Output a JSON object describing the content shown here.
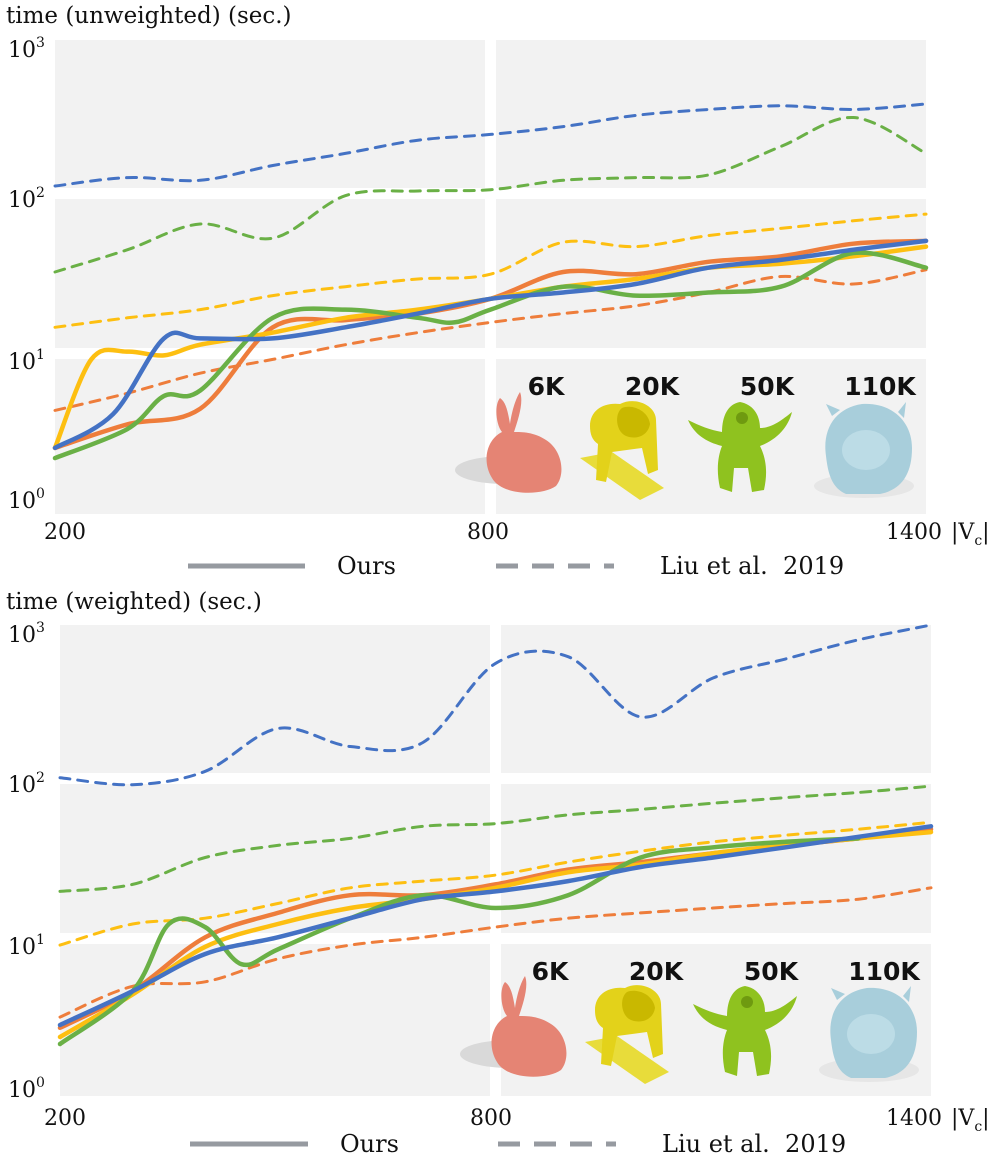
{
  "chart_data": [
    {
      "type": "line",
      "title": "time (unweighted) (sec.)",
      "xlabel": "|Vc|",
      "x_ticks": [
        "200",
        "800",
        "1400"
      ],
      "xlim": [
        200,
        1400
      ],
      "y_scale": "log",
      "ylim": [
        1,
        1000
      ],
      "y_ticks": [
        {
          "base": "10",
          "exp": "0"
        },
        {
          "base": "10",
          "exp": "1"
        },
        {
          "base": "10",
          "exp": "2"
        },
        {
          "base": "10",
          "exp": "3"
        }
      ],
      "mesh_labels": [
        "6K",
        "20K",
        "50K",
        "110K"
      ],
      "legend": {
        "solid": "Ours",
        "dashed": "Liu et al.  2019"
      },
      "series": [
        {
          "name": "6K Ours",
          "style": "solid",
          "color": "#ee7d3b",
          "points": [
            [
              200,
              2.1
            ],
            [
              300,
              3.0
            ],
            [
              400,
              3.8
            ],
            [
              500,
              13.0
            ],
            [
              600,
              14.5
            ],
            [
              700,
              16.0
            ],
            [
              800,
              20.0
            ],
            [
              900,
              30.0
            ],
            [
              1000,
              29.0
            ],
            [
              1100,
              35.0
            ],
            [
              1200,
              38.0
            ],
            [
              1300,
              46.0
            ],
            [
              1400,
              48.0
            ]
          ]
        },
        {
          "name": "20K Ours",
          "style": "solid",
          "color": "#fdbf11",
          "points": [
            [
              200,
              2.1
            ],
            [
              250,
              8.0
            ],
            [
              300,
              9.0
            ],
            [
              350,
              8.5
            ],
            [
              400,
              10.0
            ],
            [
              500,
              12.0
            ],
            [
              600,
              15.0
            ],
            [
              700,
              17.0
            ],
            [
              800,
              20.0
            ],
            [
              900,
              24.0
            ],
            [
              1000,
              27.0
            ],
            [
              1100,
              32.0
            ],
            [
              1200,
              34.0
            ],
            [
              1300,
              38.0
            ],
            [
              1400,
              44.0
            ]
          ]
        },
        {
          "name": "50K Ours",
          "style": "solid",
          "color": "#6ab046",
          "points": [
            [
              200,
              1.8
            ],
            [
              300,
              2.8
            ],
            [
              350,
              4.6
            ],
            [
              400,
              5.0
            ],
            [
              500,
              15.0
            ],
            [
              600,
              17.0
            ],
            [
              700,
              15.0
            ],
            [
              750,
              14.0
            ],
            [
              800,
              17.0
            ],
            [
              900,
              24.0
            ],
            [
              1000,
              21.0
            ],
            [
              1100,
              22.0
            ],
            [
              1200,
              24.0
            ],
            [
              1300,
              40.0
            ],
            [
              1400,
              32.0
            ]
          ]
        },
        {
          "name": "110K Ours",
          "style": "solid",
          "color": "#4472c4",
          "points": [
            [
              200,
              2.1
            ],
            [
              280,
              3.5
            ],
            [
              350,
              11.0
            ],
            [
              400,
              11.0
            ],
            [
              500,
              11.0
            ],
            [
              600,
              13.0
            ],
            [
              700,
              16.0
            ],
            [
              800,
              20.0
            ],
            [
              900,
              22.0
            ],
            [
              1000,
              25.0
            ],
            [
              1100,
              32.0
            ],
            [
              1200,
              36.0
            ],
            [
              1300,
              42.0
            ],
            [
              1400,
              48.0
            ]
          ]
        },
        {
          "name": "6K Liu et al. 2019",
          "style": "dashed",
          "color": "#ee7d3b",
          "points": [
            [
              200,
              3.7
            ],
            [
              300,
              4.8
            ],
            [
              400,
              6.5
            ],
            [
              500,
              8.0
            ],
            [
              600,
              10.0
            ],
            [
              700,
              12.0
            ],
            [
              800,
              14.0
            ],
            [
              900,
              16.0
            ],
            [
              1000,
              18.0
            ],
            [
              1100,
              22.0
            ],
            [
              1200,
              28.0
            ],
            [
              1300,
              25.0
            ],
            [
              1400,
              31.0
            ]
          ]
        },
        {
          "name": "20K Liu et al. 2019",
          "style": "dashed",
          "color": "#fdbf11",
          "points": [
            [
              200,
              13.0
            ],
            [
              300,
              15.0
            ],
            [
              400,
              17.0
            ],
            [
              500,
              21.0
            ],
            [
              600,
              24.0
            ],
            [
              700,
              27.0
            ],
            [
              800,
              29.0
            ],
            [
              900,
              47.0
            ],
            [
              1000,
              44.0
            ],
            [
              1100,
              52.0
            ],
            [
              1200,
              58.0
            ],
            [
              1300,
              65.0
            ],
            [
              1400,
              72.0
            ]
          ]
        },
        {
          "name": "50K Liu et al. 2019",
          "style": "dashed",
          "color": "#6ab046",
          "points": [
            [
              200,
              30.0
            ],
            [
              300,
              42.0
            ],
            [
              400,
              62.0
            ],
            [
              500,
              50.0
            ],
            [
              600,
              95.0
            ],
            [
              700,
              102.0
            ],
            [
              800,
              104.0
            ],
            [
              900,
              120.0
            ],
            [
              1000,
              125.0
            ],
            [
              1100,
              130.0
            ],
            [
              1200,
              200.0
            ],
            [
              1300,
              310.0
            ],
            [
              1400,
              180.0
            ]
          ]
        },
        {
          "name": "110K Liu et al. 2019",
          "style": "dashed",
          "color": "#4472c4",
          "points": [
            [
              200,
              110.0
            ],
            [
              300,
              125.0
            ],
            [
              400,
              120.0
            ],
            [
              500,
              150.0
            ],
            [
              600,
              180.0
            ],
            [
              700,
              220.0
            ],
            [
              800,
              240.0
            ],
            [
              900,
              270.0
            ],
            [
              1000,
              320.0
            ],
            [
              1100,
              350.0
            ],
            [
              1200,
              370.0
            ],
            [
              1300,
              350.0
            ],
            [
              1400,
              380.0
            ]
          ]
        }
      ]
    },
    {
      "type": "line",
      "title": "time (weighted) (sec.)",
      "xlabel": "|Vc|",
      "x_ticks": [
        "200",
        "800",
        "1400"
      ],
      "xlim": [
        200,
        1400
      ],
      "y_scale": "log",
      "ylim": [
        1,
        1000
      ],
      "y_ticks": [
        {
          "base": "10",
          "exp": "0"
        },
        {
          "base": "10",
          "exp": "1"
        },
        {
          "base": "10",
          "exp": "2"
        },
        {
          "base": "10",
          "exp": "3"
        }
      ],
      "mesh_labels": [
        "6K",
        "20K",
        "50K",
        "110K"
      ],
      "legend": {
        "solid": "Ours",
        "dashed": "Liu et al.  2019"
      },
      "series": [
        {
          "name": "6K Ours",
          "style": "solid",
          "color": "#ee7d3b",
          "points": [
            [
              200,
              2.3
            ],
            [
              300,
              4.0
            ],
            [
              400,
              9.0
            ],
            [
              500,
              13.0
            ],
            [
              600,
              17.0
            ],
            [
              700,
              17.0
            ],
            [
              800,
              20.0
            ],
            [
              900,
              25.0
            ],
            [
              1000,
              28.0
            ],
            [
              1100,
              32.0
            ],
            [
              1200,
              36.0
            ],
            [
              1300,
              40.0
            ],
            [
              1400,
              46.0
            ]
          ]
        },
        {
          "name": "20K Ours",
          "style": "solid",
          "color": "#fdbf11",
          "points": [
            [
              200,
              2.0
            ],
            [
              300,
              3.8
            ],
            [
              400,
              7.8
            ],
            [
              500,
              11.0
            ],
            [
              600,
              14.0
            ],
            [
              700,
              16.0
            ],
            [
              800,
              19.0
            ],
            [
              900,
              24.0
            ],
            [
              1000,
              27.0
            ],
            [
              1100,
              32.0
            ],
            [
              1200,
              36.0
            ],
            [
              1300,
              40.0
            ],
            [
              1400,
              44.0
            ]
          ]
        },
        {
          "name": "50K Ours",
          "style": "solid",
          "color": "#6ab046",
          "points": [
            [
              200,
              1.8
            ],
            [
              300,
              4.0
            ],
            [
              350,
              11.0
            ],
            [
              400,
              10.5
            ],
            [
              450,
              6.0
            ],
            [
              500,
              7.5
            ],
            [
              600,
              12.0
            ],
            [
              700,
              17.0
            ],
            [
              800,
              14.0
            ],
            [
              900,
              17.0
            ],
            [
              1000,
              30.0
            ],
            [
              1100,
              35.0
            ],
            [
              1200,
              38.0
            ],
            [
              1300,
              40.0
            ]
          ]
        },
        {
          "name": "110K Ours",
          "style": "solid",
          "color": "#4472c4",
          "points": [
            [
              200,
              2.4
            ],
            [
              300,
              4.0
            ],
            [
              400,
              7.0
            ],
            [
              500,
              9.0
            ],
            [
              600,
              12.0
            ],
            [
              700,
              16.0
            ],
            [
              800,
              18.0
            ],
            [
              900,
              21.0
            ],
            [
              1000,
              26.0
            ],
            [
              1100,
              30.0
            ],
            [
              1200,
              35.0
            ],
            [
              1300,
              41.0
            ],
            [
              1400,
              48.0
            ]
          ]
        },
        {
          "name": "6K Liu et al. 2019",
          "style": "dashed",
          "color": "#ee7d3b",
          "points": [
            [
              200,
              2.7
            ],
            [
              300,
              4.3
            ],
            [
              400,
              4.6
            ],
            [
              500,
              6.5
            ],
            [
              600,
              8.0
            ],
            [
              700,
              9.0
            ],
            [
              800,
              10.5
            ],
            [
              900,
              12.0
            ],
            [
              1000,
              13.0
            ],
            [
              1100,
              14.0
            ],
            [
              1200,
              15.0
            ],
            [
              1300,
              16.0
            ],
            [
              1400,
              19.0
            ]
          ]
        },
        {
          "name": "20K Liu et al. 2019",
          "style": "dashed",
          "color": "#fdbf11",
          "points": [
            [
              200,
              8.0
            ],
            [
              300,
              11.0
            ],
            [
              400,
              12.0
            ],
            [
              500,
              15.0
            ],
            [
              600,
              19.0
            ],
            [
              700,
              21.0
            ],
            [
              800,
              23.0
            ],
            [
              900,
              28.0
            ],
            [
              1000,
              33.0
            ],
            [
              1100,
              38.0
            ],
            [
              1200,
              42.0
            ],
            [
              1300,
              46.0
            ],
            [
              1400,
              51.0
            ]
          ]
        },
        {
          "name": "50K Liu et al. 2019",
          "style": "dashed",
          "color": "#6ab046",
          "points": [
            [
              200,
              18.0
            ],
            [
              300,
              20.0
            ],
            [
              400,
              30.0
            ],
            [
              500,
              36.0
            ],
            [
              600,
              40.0
            ],
            [
              700,
              48.0
            ],
            [
              800,
              50.0
            ],
            [
              900,
              57.0
            ],
            [
              1000,
              62.0
            ],
            [
              1100,
              68.0
            ],
            [
              1200,
              74.0
            ],
            [
              1300,
              80.0
            ],
            [
              1400,
              88.0
            ]
          ]
        },
        {
          "name": "110K Liu et al. 2019",
          "style": "dashed",
          "color": "#4472c4",
          "points": [
            [
              200,
              100.0
            ],
            [
              300,
              90.0
            ],
            [
              400,
              110.0
            ],
            [
              500,
              210.0
            ],
            [
              600,
              160.0
            ],
            [
              700,
              170.0
            ],
            [
              800,
              560.0
            ],
            [
              900,
              620.0
            ],
            [
              1000,
              250.0
            ],
            [
              1100,
              450.0
            ],
            [
              1200,
              600.0
            ],
            [
              1300,
              800.0
            ],
            [
              1400,
              1000.0
            ]
          ]
        }
      ]
    }
  ]
}
